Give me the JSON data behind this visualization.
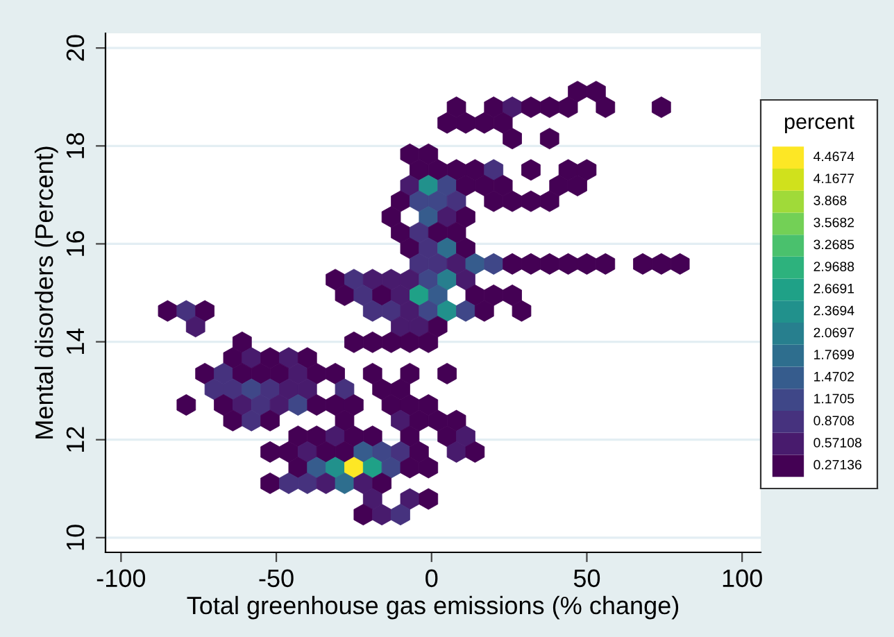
{
  "chart_data": {
    "type": "scatter",
    "xlabel": "Total greenhouse gas emissions (% change)",
    "ylabel": "Mental disorders (Percent)",
    "clabel": "percent",
    "xlim": [
      -105,
      106
    ],
    "ylim": [
      9.7,
      20.3
    ],
    "xticks": [
      -100,
      -50,
      0,
      50,
      100
    ],
    "yticks": [
      10,
      12,
      14,
      16,
      18,
      20
    ],
    "grid": "y",
    "cticks": [
      0.27136,
      0.57108,
      0.8708,
      1.1705,
      1.4702,
      1.7699,
      2.0697,
      2.3694,
      2.6691,
      2.9688,
      3.2685,
      3.5682,
      3.868,
      4.1677,
      4.4674
    ],
    "x": [
      47,
      53,
      8,
      20,
      26,
      32,
      38,
      44,
      56,
      74,
      5,
      11,
      17,
      23,
      26,
      38,
      -7,
      -1,
      -4,
      2,
      8,
      14,
      20,
      32,
      44,
      50,
      -7,
      -1,
      5,
      11,
      17,
      23,
      41,
      47,
      -10,
      -4,
      2,
      8,
      20,
      26,
      32,
      38,
      -13,
      -1,
      5,
      11,
      -10,
      -4,
      2,
      8,
      -7,
      -1,
      5,
      11,
      -4,
      2,
      8,
      14,
      20,
      26,
      32,
      38,
      44,
      50,
      56,
      68,
      74,
      80,
      -31,
      -25,
      -19,
      -13,
      -7,
      -1,
      5,
      11,
      -28,
      -22,
      -16,
      -10,
      -4,
      2,
      14,
      20,
      26,
      -85,
      -79,
      -73,
      -19,
      -13,
      -7,
      -1,
      5,
      11,
      17,
      29,
      -76,
      -10,
      -4,
      2,
      -61,
      -25,
      -19,
      -13,
      -7,
      -1,
      -64,
      -58,
      -52,
      -46,
      -40,
      -73,
      -67,
      -61,
      -55,
      -49,
      -43,
      -37,
      -31,
      -19,
      -7,
      5,
      -70,
      -64,
      -58,
      -52,
      -46,
      -40,
      -28,
      -16,
      -10,
      -79,
      -67,
      -61,
      -55,
      -49,
      -43,
      -37,
      -31,
      -25,
      -13,
      -7,
      -1,
      -64,
      -58,
      -52,
      -28,
      -10,
      -4,
      2,
      8,
      -43,
      -37,
      -31,
      -25,
      -19,
      -7,
      5,
      11,
      -52,
      -46,
      -40,
      -34,
      -28,
      -22,
      -16,
      -10,
      -4,
      8,
      14,
      -43,
      -37,
      -31,
      -25,
      -19,
      -13,
      -7,
      -1,
      -52,
      -46,
      -40,
      -34,
      -28,
      -22,
      -16,
      -19,
      -7,
      -1,
      -22,
      -16,
      -10
    ],
    "values": [
      19.11,
      19.11,
      18.79,
      18.79,
      18.79,
      18.79,
      18.79,
      18.79,
      18.79,
      18.79,
      18.47,
      18.47,
      18.47,
      18.47,
      18.15,
      18.15,
      17.83,
      17.83,
      17.51,
      17.51,
      17.51,
      17.51,
      17.51,
      17.51,
      17.51,
      17.51,
      17.19,
      17.19,
      17.19,
      17.19,
      17.19,
      17.19,
      17.19,
      17.19,
      16.87,
      16.87,
      16.87,
      16.87,
      16.87,
      16.87,
      16.87,
      16.87,
      16.55,
      16.55,
      16.55,
      16.55,
      16.23,
      16.23,
      16.23,
      16.23,
      15.91,
      15.91,
      15.91,
      15.91,
      15.59,
      15.59,
      15.59,
      15.59,
      15.59,
      15.59,
      15.59,
      15.59,
      15.59,
      15.59,
      15.59,
      15.59,
      15.59,
      15.59,
      15.27,
      15.27,
      15.27,
      15.27,
      15.27,
      15.27,
      15.27,
      15.27,
      14.95,
      14.95,
      14.95,
      14.95,
      14.95,
      14.95,
      14.95,
      14.95,
      14.95,
      14.63,
      14.63,
      14.63,
      14.63,
      14.63,
      14.63,
      14.63,
      14.63,
      14.63,
      14.63,
      14.63,
      14.31,
      14.31,
      14.31,
      14.31,
      13.99,
      13.99,
      13.99,
      13.99,
      13.99,
      13.99,
      13.67,
      13.67,
      13.67,
      13.67,
      13.67,
      13.35,
      13.35,
      13.35,
      13.35,
      13.35,
      13.35,
      13.35,
      13.35,
      13.35,
      13.35,
      13.35,
      13.03,
      13.03,
      13.03,
      13.03,
      13.03,
      13.03,
      13.03,
      13.03,
      13.03,
      12.71,
      12.71,
      12.71,
      12.71,
      12.71,
      12.71,
      12.71,
      12.71,
      12.71,
      12.71,
      12.71,
      12.71,
      12.39,
      12.39,
      12.39,
      12.39,
      12.39,
      12.39,
      12.39,
      12.39,
      12.07,
      12.07,
      12.07,
      12.07,
      12.07,
      12.07,
      12.07,
      12.07,
      11.75,
      11.75,
      11.75,
      11.75,
      11.75,
      11.75,
      11.75,
      11.75,
      11.75,
      11.75,
      11.75,
      11.43,
      11.43,
      11.43,
      11.43,
      11.43,
      11.43,
      11.43,
      11.43,
      11.11,
      11.11,
      11.11,
      11.11,
      11.11,
      11.11,
      11.11,
      10.79,
      10.79,
      10.79,
      10.47,
      10.47,
      10.47
    ],
    "cvalues": [
      0.27136,
      0.27136,
      0.27136,
      0.27136,
      0.57108,
      0.27136,
      0.27136,
      0.27136,
      0.27136,
      0.27136,
      0.27136,
      0.27136,
      0.27136,
      0.27136,
      0.27136,
      0.27136,
      0.27136,
      0.27136,
      0.27136,
      0.27136,
      0.27136,
      0.27136,
      0.8708,
      0.27136,
      0.27136,
      0.27136,
      0.57108,
      2.3694,
      1.1705,
      0.27136,
      0.27136,
      0.27136,
      0.27136,
      0.27136,
      0.27136,
      1.1705,
      1.1705,
      0.8708,
      0.27136,
      0.27136,
      0.27136,
      0.27136,
      0.27136,
      1.4702,
      0.57108,
      0.27136,
      0.27136,
      0.8708,
      0.27136,
      0.27136,
      0.27136,
      0.8708,
      1.7699,
      0.27136,
      0.8708,
      0.8708,
      0.57108,
      1.4702,
      1.1705,
      0.27136,
      0.27136,
      0.27136,
      0.27136,
      0.27136,
      0.27136,
      0.27136,
      0.27136,
      0.27136,
      0.27136,
      0.8708,
      0.57108,
      0.57108,
      0.57108,
      1.1705,
      2.0697,
      0.57108,
      0.27136,
      0.8708,
      0.27136,
      0.57108,
      2.6691,
      1.4702,
      0.27136,
      0.27136,
      0.27136,
      0.27136,
      0.8708,
      0.27136,
      0.8708,
      0.8708,
      0.57108,
      1.1705,
      2.3694,
      1.1705,
      0.27136,
      0.27136,
      0.57108,
      0.57108,
      0.57108,
      0.27136,
      0.27136,
      0.27136,
      0.27136,
      0.27136,
      0.27136,
      0.27136,
      0.27136,
      0.57108,
      0.27136,
      0.57108,
      0.27136,
      0.27136,
      0.8708,
      0.27136,
      0.27136,
      0.27136,
      0.57108,
      0.27136,
      0.27136,
      0.27136,
      0.27136,
      0.27136,
      0.8708,
      0.8708,
      1.1705,
      0.8708,
      0.57108,
      0.57108,
      0.8708,
      0.27136,
      0.27136,
      0.27136,
      0.27136,
      0.57108,
      0.8708,
      0.57108,
      1.1705,
      0.27136,
      0.27136,
      0.27136,
      0.27136,
      0.27136,
      0.27136,
      0.27136,
      0.8708,
      0.27136,
      0.27136,
      0.57108,
      0.27136,
      0.27136,
      0.27136,
      0.27136,
      0.27136,
      0.57108,
      0.27136,
      0.27136,
      0.27136,
      0.27136,
      0.57108,
      0.27136,
      0.27136,
      0.57108,
      0.27136,
      0.27136,
      1.4702,
      1.1705,
      0.8708,
      0.27136,
      0.57108,
      0.27136,
      0.27136,
      1.4702,
      2.3694,
      4.4674,
      2.6691,
      1.1705,
      0.27136,
      0.27136,
      0.27136,
      0.8708,
      0.8708,
      0.57108,
      1.7699,
      0.57108,
      0.27136,
      0.57108,
      0.57108,
      0.27136,
      0.27136,
      0.57108,
      0.8708
    ]
  }
}
